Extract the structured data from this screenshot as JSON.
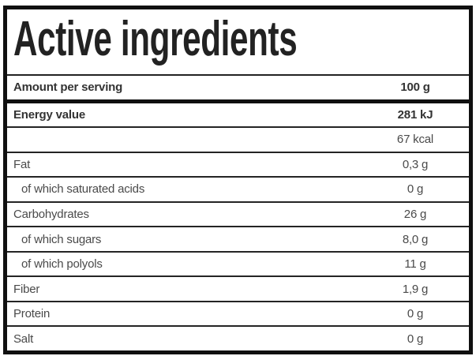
{
  "title": "Active ingredients",
  "header": {
    "label": "Amount per serving",
    "value": "100 g"
  },
  "rows": [
    {
      "label": "Energy value",
      "value": "281 kJ",
      "bold": true,
      "indent": false
    },
    {
      "label": "",
      "value": "67 kcal",
      "bold": false,
      "indent": false
    },
    {
      "label": "Fat",
      "value": "0,3 g",
      "bold": false,
      "indent": false
    },
    {
      "label": "of which saturated acids",
      "value": "0 g",
      "bold": false,
      "indent": true
    },
    {
      "label": "Carbohydrates",
      "value": "26 g",
      "bold": false,
      "indent": false
    },
    {
      "label": "of which sugars",
      "value": "8,0 g",
      "bold": false,
      "indent": true
    },
    {
      "label": "of which polyols",
      "value": "11 g",
      "bold": false,
      "indent": true
    },
    {
      "label": "Fiber",
      "value": "1,9 g",
      "bold": false,
      "indent": false
    },
    {
      "label": "Protein",
      "value": "0 g",
      "bold": false,
      "indent": false
    },
    {
      "label": "Salt",
      "value": "0 g",
      "bold": false,
      "indent": false
    }
  ],
  "colors": {
    "background": "#ffffff",
    "outer_border": "#101010",
    "separator": "#242424",
    "title_text": "#222222",
    "bold_text": "#333333",
    "regular_text": "#4a4a4a"
  }
}
